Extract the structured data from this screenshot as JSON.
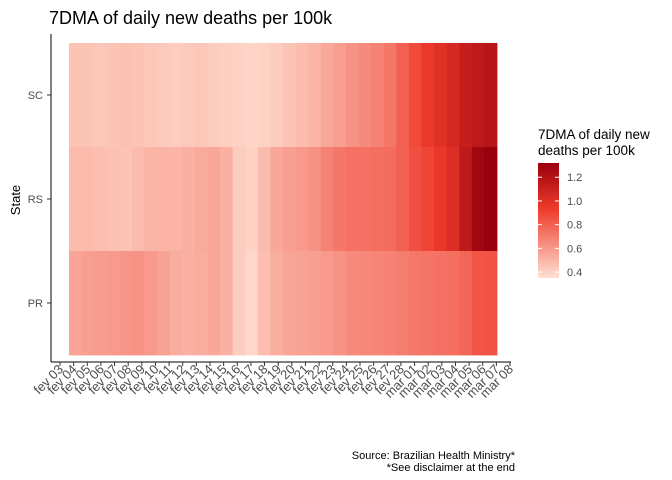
{
  "chart_data": {
    "type": "heatmap",
    "title": "7DMA of daily new deaths per 100k",
    "ylabel": "State",
    "xlabel": "",
    "x": [
      "fev 03",
      "fev 04",
      "fev 05",
      "fev 06",
      "fev 07",
      "fev 08",
      "fev 09",
      "fev 10",
      "fev 11",
      "fev 12",
      "fev 13",
      "fev 14",
      "fev 15",
      "fev 16",
      "fev 17",
      "fev 18",
      "fev 19",
      "fev 20",
      "fev 21",
      "fev 22",
      "fev 23",
      "fev 24",
      "fev 25",
      "fev 26",
      "fev 27",
      "fev 28",
      "mar 01",
      "mar 02",
      "mar 03",
      "mar 04",
      "mar 05",
      "mar 06",
      "mar 07",
      "mar 08"
    ],
    "y": [
      "SC",
      "RS",
      "PR"
    ],
    "values": {
      "SC": [
        0.45,
        0.45,
        0.44,
        0.45,
        0.46,
        0.45,
        0.44,
        0.43,
        0.42,
        0.43,
        0.44,
        0.42,
        0.41,
        0.4,
        0.39,
        0.4,
        0.42,
        0.45,
        0.48,
        0.5,
        0.55,
        0.58,
        0.62,
        0.65,
        0.68,
        0.72,
        0.8,
        0.88,
        0.95,
        1.0,
        1.05,
        1.12,
        1.15,
        1.18
      ],
      "RS": [
        0.48,
        0.48,
        0.47,
        0.46,
        0.45,
        0.48,
        0.5,
        0.51,
        0.5,
        0.52,
        0.54,
        0.55,
        0.52,
        0.42,
        0.4,
        0.48,
        0.55,
        0.58,
        0.6,
        0.63,
        0.68,
        0.72,
        0.74,
        0.74,
        0.75,
        0.76,
        0.8,
        0.86,
        0.9,
        0.96,
        1.02,
        1.15,
        1.28,
        1.32
      ],
      "PR": [
        0.56,
        0.58,
        0.59,
        0.6,
        0.61,
        0.62,
        0.6,
        0.57,
        0.53,
        0.52,
        0.53,
        0.55,
        0.52,
        0.42,
        0.38,
        0.47,
        0.53,
        0.56,
        0.57,
        0.58,
        0.6,
        0.62,
        0.65,
        0.66,
        0.67,
        0.68,
        0.7,
        0.72,
        0.73,
        0.74,
        0.75,
        0.78,
        0.84,
        0.85
      ]
    },
    "colorscale": {
      "low": "#fee0d2",
      "high": "#99000d",
      "min": 0.35,
      "max": 1.32
    },
    "legend": {
      "title_lines": [
        "7DMA of daily new",
        "deaths per 100k"
      ],
      "ticks": [
        "0.4",
        "0.6",
        "0.8",
        "1.0",
        "1.2"
      ],
      "tick_values": [
        0.4,
        0.6,
        0.8,
        1.0,
        1.2
      ],
      "placement": "right"
    },
    "grid": false
  },
  "caption": {
    "line1": "Source: Brazilian Health Ministry*",
    "line2": "*See disclaimer at the end"
  }
}
